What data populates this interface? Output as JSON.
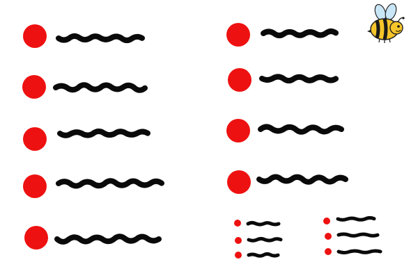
{
  "colors": {
    "bullet": "#ee1111",
    "scribble": "#0a0a0a",
    "bee_body": "#f6c52a",
    "bee_stripe": "#1a1a1a",
    "bee_wing": "#c9e6f7"
  },
  "icons": {
    "mascot": "bee-icon",
    "bullet": "red-dot-icon",
    "line": "scribble-line-icon"
  },
  "groups": [
    {
      "name": "left-column",
      "items": 5
    },
    {
      "name": "right-column",
      "items": 4
    },
    {
      "name": "mini-list-left",
      "items": 3
    },
    {
      "name": "mini-list-right",
      "items": 3
    }
  ]
}
